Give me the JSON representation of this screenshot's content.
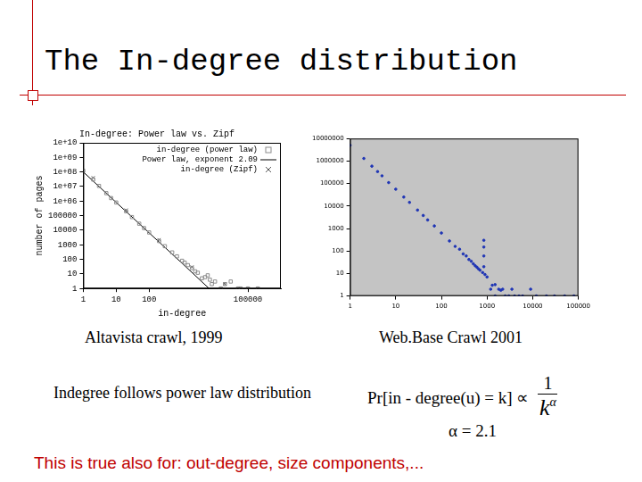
{
  "slide": {
    "title": "The In-degree distribution",
    "statement": "Indegree follows power law distribution",
    "formula": {
      "lhs": "Pr[in - degree(u) = k] ∝",
      "numerator": "1",
      "denominator": "k",
      "exponent": "α"
    },
    "alpha_text": "α = 2.1",
    "footer": "This is true also for: out-degree, size components,..."
  },
  "chart_data": [
    {
      "type": "scatter",
      "title": "In-degree: Power law vs. Zipf",
      "subtitle": "Altavista crawl, 1999",
      "xlabel": "in-degree",
      "ylabel": "number of pages",
      "log": true,
      "grid": false,
      "legend": "upper right",
      "xlim": [
        1,
        1000000
      ],
      "xticks": [
        1,
        10,
        100,
        100000
      ],
      "ylim": [
        1,
        10000000000
      ],
      "yticks": [
        1,
        10,
        100,
        1000,
        10000,
        100000,
        {
          "value": 1000000,
          "label": "1e+06"
        },
        {
          "value": 10000000,
          "label": "1e+07"
        },
        {
          "value": 100000000,
          "label": "1e+08"
        },
        {
          "value": 1000000000,
          "label": "1e+09"
        },
        {
          "value": 10000000000,
          "label": "1e+10"
        }
      ],
      "series": [
        {
          "name": "in-degree (power law)",
          "type": "scatter",
          "marker": "square",
          "color": "#8c8c8c",
          "x": [
            1,
            2,
            3,
            5,
            7,
            10,
            20,
            30,
            50,
            70,
            100,
            200,
            300,
            500,
            700,
            1000,
            1200,
            1500,
            2000,
            2500,
            3000,
            4000,
            5000,
            6000,
            7000,
            8000,
            10000,
            15000,
            20000,
            30000,
            50000,
            60000,
            100000,
            200000
          ],
          "values": [
            120000000,
            30000000,
            11000000,
            3500000,
            1600000,
            800000,
            200000,
            80000,
            28000,
            14000,
            7000,
            1800,
            800,
            300,
            160,
            80,
            60,
            40,
            25,
            15,
            12,
            5,
            6,
            8,
            4,
            2,
            3,
            1,
            2,
            3,
            1,
            1,
            1,
            1
          ]
        },
        {
          "name": "Power law, exponent 2.09",
          "type": "line",
          "line_style": "solid",
          "color": "#000000",
          "x": [
            1,
            10,
            100,
            1000,
            6600
          ],
          "values": [
            100000000,
            810000,
            6600,
            54,
            1
          ]
        },
        {
          "name": "in-degree (Zipf)",
          "type": "scatter",
          "marker": "cross",
          "color": "#555555",
          "x": [
            2,
            20,
            200,
            2000,
            20000
          ],
          "values": [
            40000000,
            240000,
            2200,
            30,
            2
          ]
        }
      ]
    },
    {
      "type": "scatter",
      "subtitle": "Web.Base Crawl 2001",
      "log": true,
      "grid": false,
      "xlim": [
        1,
        100000
      ],
      "xticks": [
        1,
        10,
        100,
        1000,
        10000,
        100000
      ],
      "ylim": [
        1,
        10000000
      ],
      "yticks": [
        1,
        10,
        100,
        1000,
        10000,
        100000,
        1000000,
        10000000
      ],
      "series": [
        {
          "type": "scatter",
          "marker": "circle",
          "color": "#1f35b5",
          "x": [
            1,
            2,
            3,
            4,
            5,
            7,
            10,
            15,
            20,
            30,
            40,
            50,
            70,
            100,
            150,
            200,
            250,
            300,
            350,
            400,
            450,
            500,
            550,
            600,
            650,
            700,
            800,
            850,
            850,
            850,
            850,
            900,
            1000,
            1200,
            1300,
            1500,
            1500,
            1800,
            2000,
            2200,
            2500,
            3000,
            3500,
            4000,
            5000,
            6000,
            9000,
            12000,
            20000,
            30000,
            50000,
            80000
          ],
          "values": [
            5000000,
            1300000,
            590000,
            340000,
            220000,
            110000,
            56000,
            25000,
            14500,
            6600,
            3800,
            2400,
            1300,
            630,
            280,
            160,
            120,
            74,
            60,
            42,
            35,
            27,
            22,
            19,
            16,
            14,
            11,
            20,
            60,
            150,
            300,
            9,
            7,
            2,
            3,
            3.2,
            1,
            2,
            1.8,
            2,
            1,
            1,
            2,
            1,
            1,
            1,
            2,
            1,
            1,
            1,
            1,
            1
          ]
        }
      ]
    }
  ]
}
